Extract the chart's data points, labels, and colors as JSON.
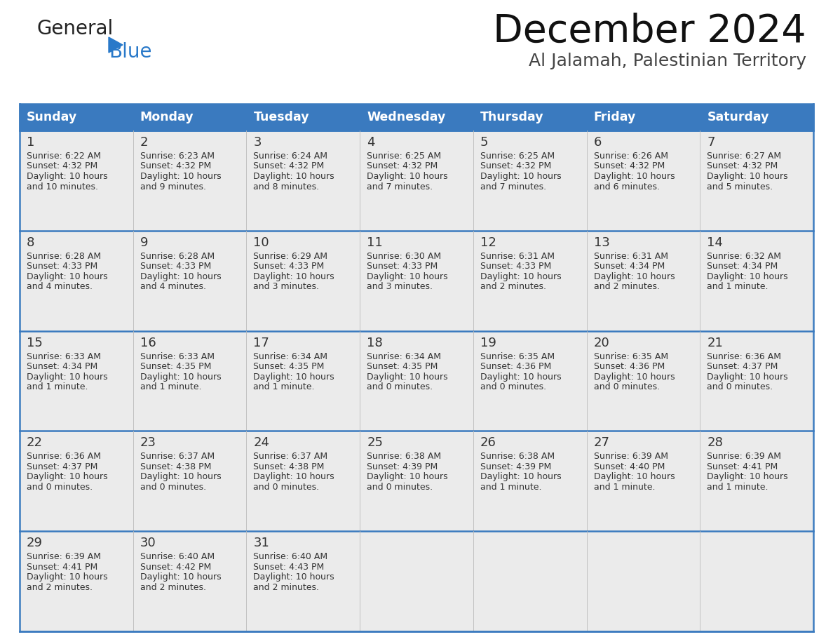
{
  "title": "December 2024",
  "subtitle": "Al Jalamah, Palestinian Territory",
  "header_bg": "#3a7abf",
  "header_text_color": "#ffffff",
  "cell_bg": "#ebebeb",
  "border_color": "#3a7abf",
  "text_color": "#333333",
  "day_headers": [
    "Sunday",
    "Monday",
    "Tuesday",
    "Wednesday",
    "Thursday",
    "Friday",
    "Saturday"
  ],
  "weeks": [
    [
      {
        "day": 1,
        "sunrise": "6:22 AM",
        "sunset": "4:32 PM",
        "daylight": "10 hours",
        "daylight2": "and 10 minutes."
      },
      {
        "day": 2,
        "sunrise": "6:23 AM",
        "sunset": "4:32 PM",
        "daylight": "10 hours",
        "daylight2": "and 9 minutes."
      },
      {
        "day": 3,
        "sunrise": "6:24 AM",
        "sunset": "4:32 PM",
        "daylight": "10 hours",
        "daylight2": "and 8 minutes."
      },
      {
        "day": 4,
        "sunrise": "6:25 AM",
        "sunset": "4:32 PM",
        "daylight": "10 hours",
        "daylight2": "and 7 minutes."
      },
      {
        "day": 5,
        "sunrise": "6:25 AM",
        "sunset": "4:32 PM",
        "daylight": "10 hours",
        "daylight2": "and 7 minutes."
      },
      {
        "day": 6,
        "sunrise": "6:26 AM",
        "sunset": "4:32 PM",
        "daylight": "10 hours",
        "daylight2": "and 6 minutes."
      },
      {
        "day": 7,
        "sunrise": "6:27 AM",
        "sunset": "4:32 PM",
        "daylight": "10 hours",
        "daylight2": "and 5 minutes."
      }
    ],
    [
      {
        "day": 8,
        "sunrise": "6:28 AM",
        "sunset": "4:33 PM",
        "daylight": "10 hours",
        "daylight2": "and 4 minutes."
      },
      {
        "day": 9,
        "sunrise": "6:28 AM",
        "sunset": "4:33 PM",
        "daylight": "10 hours",
        "daylight2": "and 4 minutes."
      },
      {
        "day": 10,
        "sunrise": "6:29 AM",
        "sunset": "4:33 PM",
        "daylight": "10 hours",
        "daylight2": "and 3 minutes."
      },
      {
        "day": 11,
        "sunrise": "6:30 AM",
        "sunset": "4:33 PM",
        "daylight": "10 hours",
        "daylight2": "and 3 minutes."
      },
      {
        "day": 12,
        "sunrise": "6:31 AM",
        "sunset": "4:33 PM",
        "daylight": "10 hours",
        "daylight2": "and 2 minutes."
      },
      {
        "day": 13,
        "sunrise": "6:31 AM",
        "sunset": "4:34 PM",
        "daylight": "10 hours",
        "daylight2": "and 2 minutes."
      },
      {
        "day": 14,
        "sunrise": "6:32 AM",
        "sunset": "4:34 PM",
        "daylight": "10 hours",
        "daylight2": "and 1 minute."
      }
    ],
    [
      {
        "day": 15,
        "sunrise": "6:33 AM",
        "sunset": "4:34 PM",
        "daylight": "10 hours",
        "daylight2": "and 1 minute."
      },
      {
        "day": 16,
        "sunrise": "6:33 AM",
        "sunset": "4:35 PM",
        "daylight": "10 hours",
        "daylight2": "and 1 minute."
      },
      {
        "day": 17,
        "sunrise": "6:34 AM",
        "sunset": "4:35 PM",
        "daylight": "10 hours",
        "daylight2": "and 1 minute."
      },
      {
        "day": 18,
        "sunrise": "6:34 AM",
        "sunset": "4:35 PM",
        "daylight": "10 hours",
        "daylight2": "and 0 minutes."
      },
      {
        "day": 19,
        "sunrise": "6:35 AM",
        "sunset": "4:36 PM",
        "daylight": "10 hours",
        "daylight2": "and 0 minutes."
      },
      {
        "day": 20,
        "sunrise": "6:35 AM",
        "sunset": "4:36 PM",
        "daylight": "10 hours",
        "daylight2": "and 0 minutes."
      },
      {
        "day": 21,
        "sunrise": "6:36 AM",
        "sunset": "4:37 PM",
        "daylight": "10 hours",
        "daylight2": "and 0 minutes."
      }
    ],
    [
      {
        "day": 22,
        "sunrise": "6:36 AM",
        "sunset": "4:37 PM",
        "daylight": "10 hours",
        "daylight2": "and 0 minutes."
      },
      {
        "day": 23,
        "sunrise": "6:37 AM",
        "sunset": "4:38 PM",
        "daylight": "10 hours",
        "daylight2": "and 0 minutes."
      },
      {
        "day": 24,
        "sunrise": "6:37 AM",
        "sunset": "4:38 PM",
        "daylight": "10 hours",
        "daylight2": "and 0 minutes."
      },
      {
        "day": 25,
        "sunrise": "6:38 AM",
        "sunset": "4:39 PM",
        "daylight": "10 hours",
        "daylight2": "and 0 minutes."
      },
      {
        "day": 26,
        "sunrise": "6:38 AM",
        "sunset": "4:39 PM",
        "daylight": "10 hours",
        "daylight2": "and 1 minute."
      },
      {
        "day": 27,
        "sunrise": "6:39 AM",
        "sunset": "4:40 PM",
        "daylight": "10 hours",
        "daylight2": "and 1 minute."
      },
      {
        "day": 28,
        "sunrise": "6:39 AM",
        "sunset": "4:41 PM",
        "daylight": "10 hours",
        "daylight2": "and 1 minute."
      }
    ],
    [
      {
        "day": 29,
        "sunrise": "6:39 AM",
        "sunset": "4:41 PM",
        "daylight": "10 hours",
        "daylight2": "and 2 minutes."
      },
      {
        "day": 30,
        "sunrise": "6:40 AM",
        "sunset": "4:42 PM",
        "daylight": "10 hours",
        "daylight2": "and 2 minutes."
      },
      {
        "day": 31,
        "sunrise": "6:40 AM",
        "sunset": "4:43 PM",
        "daylight": "10 hours",
        "daylight2": "and 2 minutes."
      },
      null,
      null,
      null,
      null
    ]
  ],
  "logo_general_color": "#222222",
  "logo_blue_color": "#2979c9",
  "logo_triangle_color": "#2979c9",
  "fig_width": 11.88,
  "fig_height": 9.18,
  "dpi": 100
}
